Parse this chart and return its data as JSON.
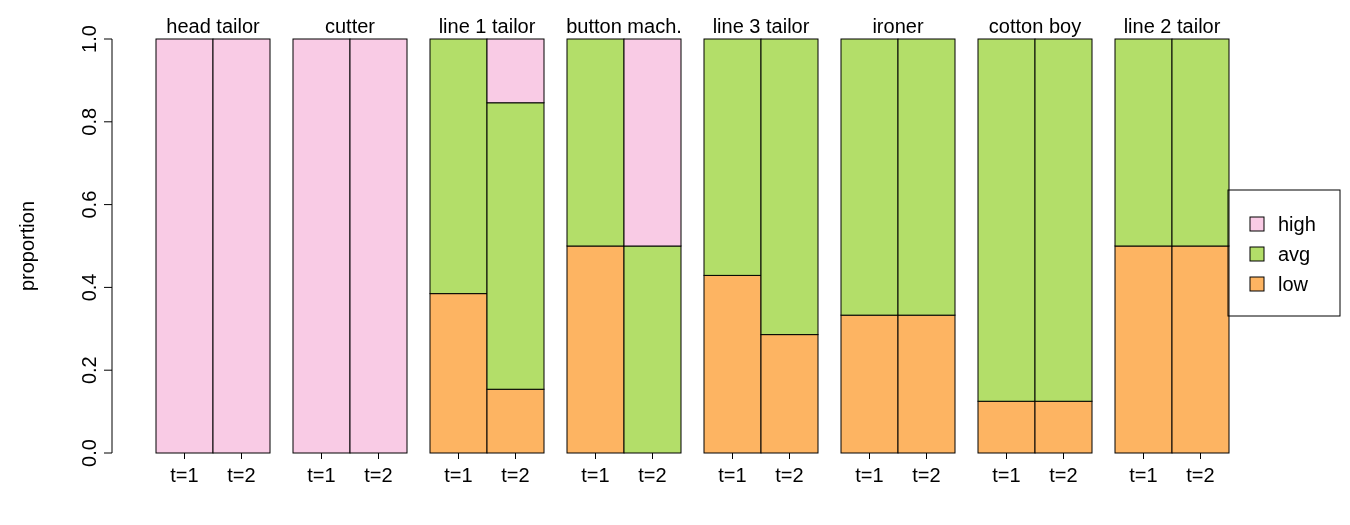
{
  "chart_data": [
    {
      "type": "bar",
      "stacked": true,
      "title": "head tailor",
      "ylabel": "proportion",
      "categories": [
        "t=1",
        "t=2"
      ],
      "ylim": [
        0,
        1
      ],
      "yticks": [
        {
          "value": 0,
          "label": "0.0"
        },
        0.2,
        0.4,
        0.6,
        0.8,
        {
          "value": 1,
          "label": "1.0"
        }
      ],
      "series": [
        {
          "color": "#fdb462",
          "values": [
            0,
            0
          ]
        },
        {
          "color": "#b3de69",
          "values": [
            0,
            0
          ]
        },
        {
          "color": "#f9cbe5",
          "values": [
            1,
            1
          ]
        }
      ]
    },
    {
      "type": "bar",
      "stacked": true,
      "title": "cutter",
      "categories": [
        "t=1",
        "t=2"
      ],
      "ylim": [
        0,
        1
      ],
      "tick_labels": "x",
      "series": [
        {
          "color": "#fdb462",
          "values": [
            0,
            0
          ]
        },
        {
          "color": "#b3de69",
          "values": [
            0,
            0
          ]
        },
        {
          "color": "#f9cbe5",
          "values": [
            1,
            1
          ]
        }
      ]
    },
    {
      "type": "bar",
      "stacked": true,
      "title": "line 1 tailor",
      "categories": [
        "t=1",
        "t=2"
      ],
      "ylim": [
        0,
        1
      ],
      "tick_labels": "x",
      "series": [
        {
          "color": "#fdb462",
          "values": [
            0.385,
            0.154
          ]
        },
        {
          "color": "#b3de69",
          "values": [
            0.615,
            0.692
          ]
        },
        {
          "color": "#f9cbe5",
          "values": [
            0,
            0.154
          ]
        }
      ]
    },
    {
      "type": "bar",
      "stacked": true,
      "title": "button mach.",
      "categories": [
        "t=1",
        "t=2"
      ],
      "ylim": [
        0,
        1
      ],
      "tick_labels": "x",
      "series": [
        {
          "color": "#fdb462",
          "values": [
            0.5,
            0
          ]
        },
        {
          "color": "#b3de69",
          "values": [
            0.5,
            0.5
          ]
        },
        {
          "color": "#f9cbe5",
          "values": [
            0,
            0.5
          ]
        }
      ]
    },
    {
      "type": "bar",
      "stacked": true,
      "title": "line 3 tailor",
      "categories": [
        "t=1",
        "t=2"
      ],
      "ylim": [
        0,
        1
      ],
      "tick_labels": "x",
      "series": [
        {
          "color": "#fdb462",
          "values": [
            0.429,
            0.286
          ]
        },
        {
          "color": "#b3de69",
          "values": [
            0.571,
            0.714
          ]
        },
        {
          "color": "#f9cbe5",
          "values": [
            0,
            0
          ]
        }
      ]
    },
    {
      "type": "bar",
      "stacked": true,
      "title": "ironer",
      "categories": [
        "t=1",
        "t=2"
      ],
      "ylim": [
        0,
        1
      ],
      "tick_labels": "x",
      "series": [
        {
          "color": "#fdb462",
          "values": [
            0.333,
            0.333
          ]
        },
        {
          "color": "#b3de69",
          "values": [
            0.667,
            0.667
          ]
        },
        {
          "color": "#f9cbe5",
          "values": [
            0,
            0
          ]
        }
      ]
    },
    {
      "type": "bar",
      "stacked": true,
      "title": "cotton boy",
      "categories": [
        "t=1",
        "t=2"
      ],
      "ylim": [
        0,
        1
      ],
      "tick_labels": "x",
      "series": [
        {
          "color": "#fdb462",
          "values": [
            0.125,
            0.125
          ]
        },
        {
          "color": "#b3de69",
          "values": [
            0.875,
            0.875
          ]
        },
        {
          "color": "#f9cbe5",
          "values": [
            0,
            0
          ]
        }
      ]
    },
    {
      "type": "bar",
      "stacked": true,
      "title": "line 2 tailor",
      "categories": [
        "t=1",
        "t=2"
      ],
      "ylim": [
        0,
        1
      ],
      "tick_labels": "x",
      "legend": "right",
      "series": [
        {
          "name": "low",
          "color": "#fdb462",
          "values": [
            0.5,
            0.5
          ]
        },
        {
          "name": "avg",
          "color": "#b3de69",
          "values": [
            0.5,
            0.5
          ]
        },
        {
          "name": "high",
          "color": "#f9cbe5",
          "values": [
            0,
            0
          ]
        }
      ]
    }
  ]
}
